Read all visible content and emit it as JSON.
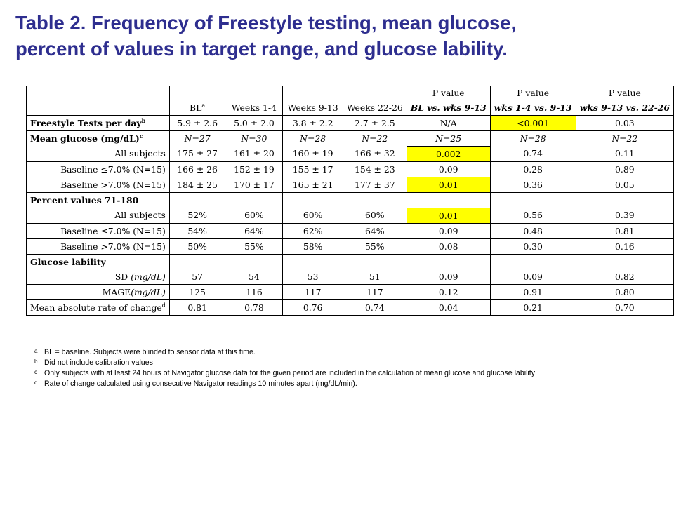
{
  "title": {
    "line1": "Table 2. Frequency of Freestyle testing, mean glucose,",
    "line2": "percent of values in target range, and glucose lability."
  },
  "header": {
    "bl": "BL",
    "bl_sup": "a",
    "w1": "Weeks 1-4",
    "w2": "Weeks 9-13",
    "w3": "Weeks 22-26",
    "p": "P value",
    "p1": "BL vs. wks 9-13",
    "p2": "wks 1-4 vs. 9-13",
    "p3": "wks 9-13 vs. 22-26"
  },
  "rows": {
    "freestyle": {
      "label": "Freestyle Tests per day",
      "sup": "b",
      "v": [
        "5.9 ± 2.6",
        "5.0 ± 2.0",
        "3.8 ± 2.2",
        "2.7 ± 2.5",
        "N/A",
        "<0.001",
        "0.03"
      ]
    },
    "mg": {
      "label": "Mean glucose (mg/dL)",
      "sup": "c",
      "v": [
        "N=27",
        "N=30",
        "N=28",
        "N=22",
        "N=25",
        "N=28",
        "N=22"
      ]
    },
    "mg_all": {
      "label": "All subjects",
      "v": [
        "175 ± 27",
        "161 ± 20",
        "160 ± 19",
        "166 ± 32",
        "0.002",
        "0.74",
        "0.11"
      ]
    },
    "mg_le": {
      "label": "Baseline ≤7.0% (N=15)",
      "v": [
        "166 ± 26",
        "152 ± 19",
        "155 ± 17",
        "154 ± 23",
        "0.09",
        "0.28",
        "0.89"
      ]
    },
    "mg_gt": {
      "label": "Baseline >7.0% (N=15)",
      "v": [
        "184 ± 25",
        "170 ± 17",
        "165 ± 21",
        "177 ± 37",
        "0.01",
        "0.36",
        "0.05"
      ]
    },
    "pv": {
      "label": "Percent values 71-180"
    },
    "pv_all": {
      "label": "All subjects",
      "v": [
        "52%",
        "60%",
        "60%",
        "60%",
        "0.01",
        "0.56",
        "0.39"
      ]
    },
    "pv_le": {
      "label": "Baseline ≤7.0% (N=15)",
      "v": [
        "54%",
        "64%",
        "62%",
        "64%",
        "0.09",
        "0.48",
        "0.81"
      ]
    },
    "pv_gt": {
      "label": "Baseline >7.0% (N=15)",
      "v": [
        "50%",
        "55%",
        "58%",
        "55%",
        "0.08",
        "0.30",
        "0.16"
      ]
    },
    "gl": {
      "label": "Glucose lability"
    },
    "sd": {
      "label": "SD",
      "unit": "(mg/dL)",
      "v": [
        "57",
        "54",
        "53",
        "51",
        "0.09",
        "0.09",
        "0.82"
      ]
    },
    "mage": {
      "label": "MAGE",
      "unit": "(mg/dL)",
      "v": [
        "125",
        "116",
        "117",
        "117",
        "0.12",
        "0.91",
        "0.80"
      ]
    },
    "marc": {
      "label": "Mean absolute rate of change",
      "sup": "d",
      "v": [
        "0.81",
        "0.78",
        "0.76",
        "0.74",
        "0.04",
        "0.21",
        "0.70"
      ]
    }
  },
  "footnotes": [
    {
      "mark": "a",
      "text": "BL = baseline. Subjects were blinded to sensor data at this time."
    },
    {
      "mark": "b",
      "text": "Did not include calibration values"
    },
    {
      "mark": "c",
      "text": "Only subjects with at least 24 hours of Navigator glucose data for the given period are included in the calculation of mean glucose and glucose lability"
    },
    {
      "mark": "d",
      "text": "Rate of change calculated using consecutive Navigator readings 10 minutes apart (mg/dL/min)."
    }
  ],
  "colors": {
    "title": "#2e2e8f",
    "highlight": "#ffff00",
    "border": "#000000"
  }
}
